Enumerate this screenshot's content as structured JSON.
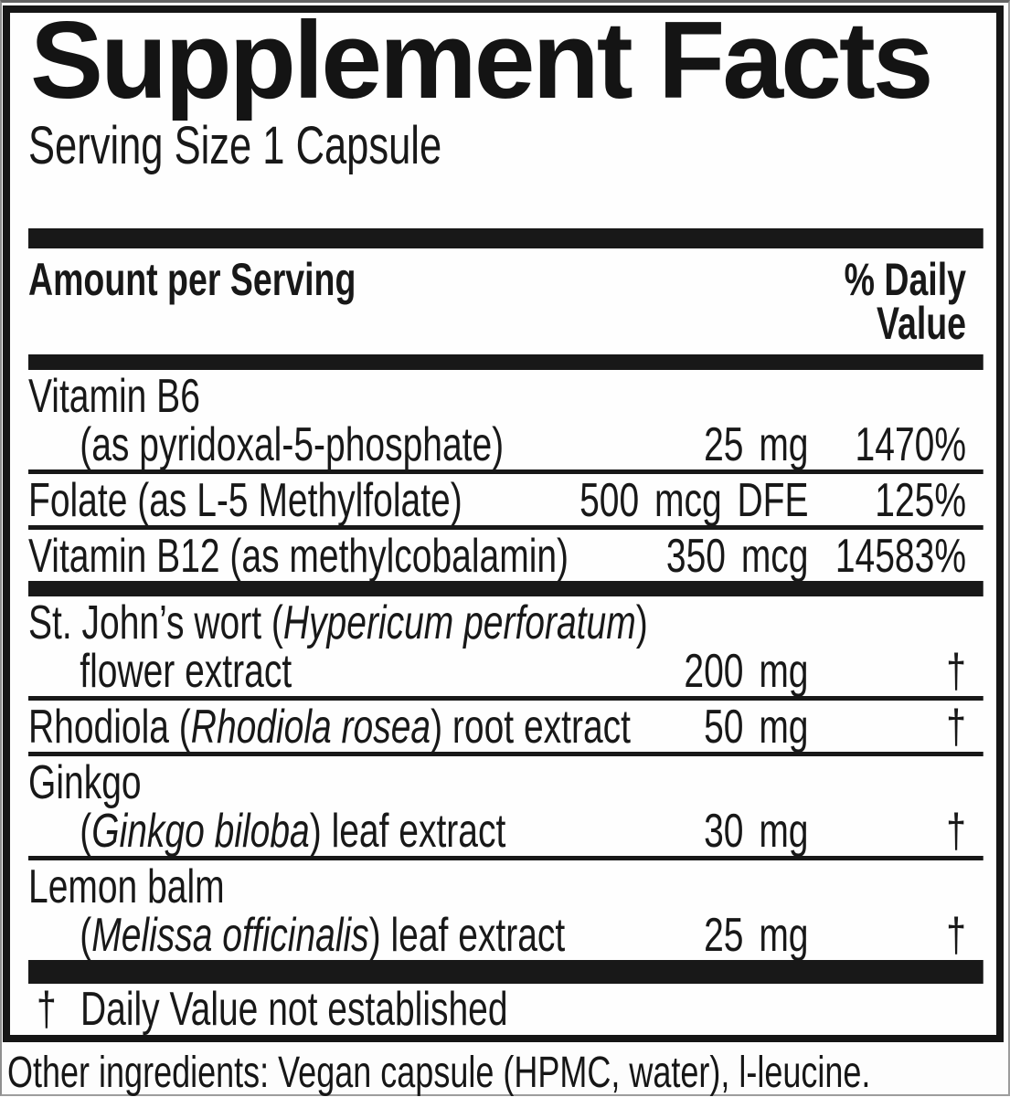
{
  "label": {
    "title": "Supplement Facts",
    "serving_size": "Serving Size 1 Capsule",
    "header": {
      "amount": "Amount per Serving",
      "dv_line1": "% Daily",
      "dv_line2": "Value"
    },
    "rows": [
      {
        "line1": [
          {
            "t": "Vitamin B6"
          }
        ],
        "line2": [
          {
            "t": "(as pyridoxal-5-phosphate)"
          }
        ],
        "amount": "25 mg",
        "dv": "1470%"
      },
      {
        "line1": [
          {
            "t": "Folate (as L-5 Methylfolate)"
          }
        ],
        "amount": "500 mcg DFE",
        "dv": "125%"
      },
      {
        "line1": [
          {
            "t": "Vitamin B12 (as methylcobalamin)"
          }
        ],
        "amount": "350 mcg",
        "dv": "14583%"
      },
      {
        "line1": [
          {
            "t": "St. John’s wort ("
          },
          {
            "t": "Hypericum perforatum",
            "italic": true
          },
          {
            "t": ")"
          }
        ],
        "line2": [
          {
            "t": "flower extract"
          }
        ],
        "amount": "200 mg",
        "dv": "†"
      },
      {
        "line1": [
          {
            "t": "Rhodiola ("
          },
          {
            "t": "Rhodiola rosea",
            "italic": true
          },
          {
            "t": ") root extract"
          }
        ],
        "amount": "50 mg",
        "dv": "†"
      },
      {
        "line1": [
          {
            "t": "Ginkgo"
          }
        ],
        "line2": [
          {
            "t": "("
          },
          {
            "t": "Ginkgo biloba",
            "italic": true
          },
          {
            "t": ") leaf extract"
          }
        ],
        "amount": "30 mg",
        "dv": "†"
      },
      {
        "line1": [
          {
            "t": "Lemon balm"
          }
        ],
        "line2": [
          {
            "t": "("
          },
          {
            "t": "Melissa officinalis",
            "italic": true
          },
          {
            "t": ") leaf extract"
          }
        ],
        "amount": "25 mg",
        "dv": "†"
      }
    ],
    "footnote": {
      "symbol": "†",
      "text": "Daily Value not established"
    }
  },
  "footer": {
    "other_ingredients": "Other ingredients: Vegan capsule (HPMC, water), l-leucine."
  },
  "colors": {
    "ink": "#181818",
    "background": "#fefefe"
  }
}
